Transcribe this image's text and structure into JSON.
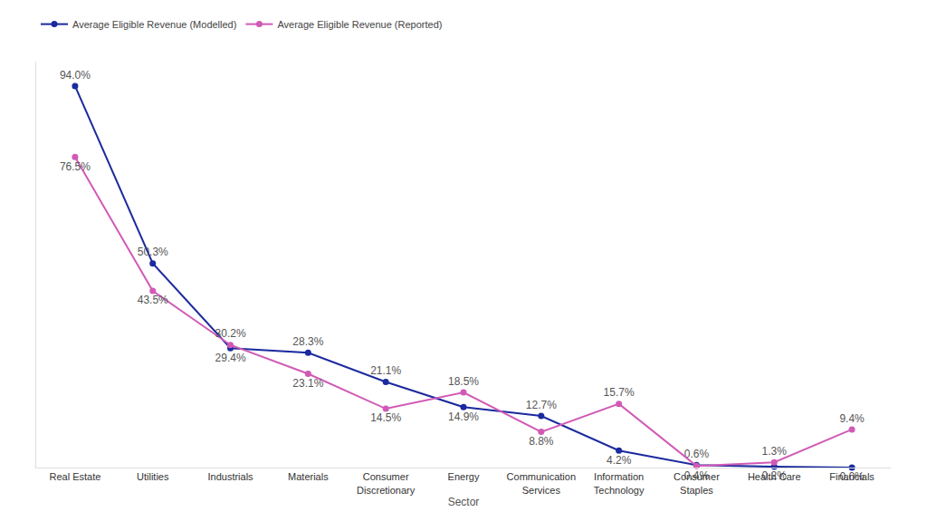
{
  "chart_data": {
    "type": "line",
    "x_label": "Sector",
    "categories": [
      "Real Estate",
      "Utilities",
      "Industrials",
      "Materials",
      "Consumer Discretionary",
      "Energy",
      "Communication Services",
      "Information Technology",
      "Consumer Staples",
      "Health Care",
      "Financials"
    ],
    "series": [
      {
        "name": "Average Eligible Revenue (Modelled)",
        "color": "#1b2a9e",
        "marker": "circle",
        "values": [
          94.0,
          50.3,
          29.4,
          28.3,
          21.1,
          14.9,
          12.7,
          4.2,
          0.6,
          0.2,
          0.0
        ],
        "value_labels": [
          "94.0%",
          "50.3%",
          "29.4%",
          "28.3%",
          "21.1%",
          "14.9%",
          "12.7%",
          "4.2%",
          "0.6%",
          "0.2%",
          "0.0%"
        ]
      },
      {
        "name": "Average Eligible Revenue (Reported)",
        "color": "#d15ab6",
        "marker": "circle",
        "values": [
          76.5,
          43.5,
          30.2,
          23.1,
          14.5,
          18.5,
          8.8,
          15.7,
          0.4,
          1.3,
          9.4
        ],
        "value_labels": [
          "76.5%",
          "43.5%",
          "30.2%",
          "23.1%",
          "14.5%",
          "18.5%",
          "8.8%",
          "15.7%",
          "0.4%",
          "1.3%",
          "9.4%"
        ]
      }
    ],
    "ylim": [
      0,
      100
    ],
    "yticks": [],
    "tick_labels": "x",
    "grid": false,
    "legend": "top left",
    "data_labels": true
  }
}
